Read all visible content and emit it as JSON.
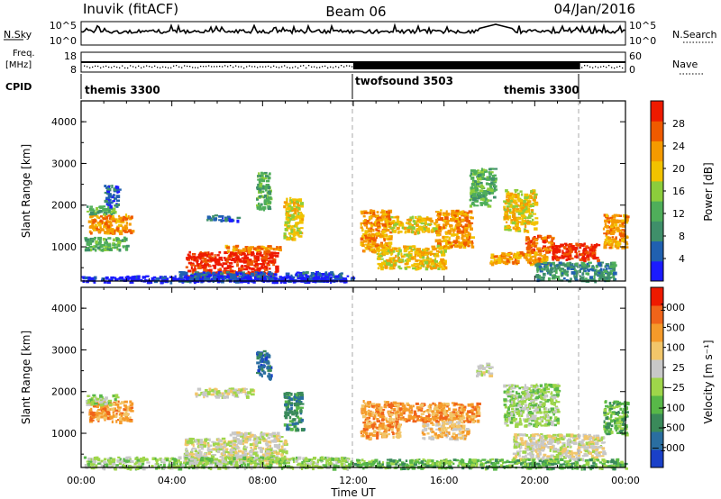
{
  "header": {
    "station": "Inuvik (fitACF)",
    "beam": "Beam 06",
    "date": "04/Jan/2016"
  },
  "top_panels": {
    "nsky_label": "N.Sky",
    "nsky_ticks": [
      "10^5",
      "10^0"
    ],
    "nsearch_label": "N.Search",
    "nsearch_ticks": [
      "10^5",
      "10^0"
    ],
    "freq_label_line1": "Freq.",
    "freq_label_line2": "[MHz]",
    "freq_ticks": [
      "18",
      "8"
    ],
    "nave_label": "Nave",
    "nave_ticks": [
      "60",
      "0"
    ],
    "cpid_label": "CPID",
    "cpid_segments": [
      {
        "name": "themis 3300",
        "start_hour": 0,
        "end_hour": 12
      },
      {
        "name": "twofsound 3503",
        "start_hour": 12,
        "end_hour": 22
      },
      {
        "name": "themis 3300",
        "start_hour": 22,
        "end_hour": 24
      }
    ]
  },
  "chart_data": [
    {
      "type": "heatmap",
      "name": "power",
      "ylabel": "Slant Range [km]",
      "xlim": [
        0,
        24
      ],
      "ylim": [
        180,
        4500
      ],
      "yticks": [
        "1000",
        "2000",
        "3000",
        "4000"
      ],
      "colorbar": {
        "label": "Power [dB]",
        "ticks": [
          "4",
          "8",
          "12",
          "16",
          "20",
          "24",
          "28"
        ],
        "colors": [
          "#1b1bff",
          "#2060b0",
          "#3f8f6a",
          "#4fae5a",
          "#8ccd3c",
          "#f2c200",
          "#f59a00",
          "#ef5a00",
          "#ee1a00"
        ]
      },
      "patches": [
        {
          "t0": 0.3,
          "t1": 2.2,
          "r0": 1350,
          "r1": 1800,
          "level": 6
        },
        {
          "t0": 0.2,
          "t1": 1.4,
          "r0": 1800,
          "r1": 2000,
          "level": 3
        },
        {
          "t0": 1.0,
          "t1": 1.6,
          "r0": 2000,
          "r1": 2500,
          "level": 1
        },
        {
          "t0": 0.1,
          "t1": 2.0,
          "r0": 950,
          "r1": 1250,
          "level": 3
        },
        {
          "t0": 4.6,
          "t1": 8.6,
          "r0": 300,
          "r1": 900,
          "level": 8
        },
        {
          "t0": 6.3,
          "t1": 8.8,
          "r0": 900,
          "r1": 1050,
          "level": 6
        },
        {
          "t0": 4.2,
          "t1": 11.5,
          "r0": 200,
          "r1": 420,
          "level": 1
        },
        {
          "t0": 5.5,
          "t1": 7.0,
          "r0": 1650,
          "r1": 1780,
          "level": 1
        },
        {
          "t0": 7.7,
          "t1": 8.3,
          "r0": 1900,
          "r1": 2800,
          "level": 3
        },
        {
          "t0": 8.9,
          "t1": 9.7,
          "r0": 1200,
          "r1": 2200,
          "level": 5
        },
        {
          "t0": 12.3,
          "t1": 13.6,
          "r0": 900,
          "r1": 1900,
          "level": 6
        },
        {
          "t0": 13.6,
          "t1": 15.6,
          "r0": 1350,
          "r1": 1750,
          "level": 5
        },
        {
          "t0": 15.6,
          "t1": 17.2,
          "r0": 1000,
          "r1": 1900,
          "level": 6
        },
        {
          "t0": 13.0,
          "t1": 16.0,
          "r0": 500,
          "r1": 1050,
          "level": 5
        },
        {
          "t0": 17.1,
          "t1": 18.2,
          "r0": 2000,
          "r1": 2900,
          "level": 3
        },
        {
          "t0": 18.6,
          "t1": 20.0,
          "r0": 1400,
          "r1": 2400,
          "level": 5
        },
        {
          "t0": 19.5,
          "t1": 20.8,
          "r0": 900,
          "r1": 1300,
          "level": 7
        },
        {
          "t0": 20.7,
          "t1": 22.8,
          "r0": 700,
          "r1": 1100,
          "level": 8
        },
        {
          "t0": 18.0,
          "t1": 20.5,
          "r0": 600,
          "r1": 900,
          "level": 6
        },
        {
          "t0": 23.0,
          "t1": 24.0,
          "r0": 1000,
          "r1": 1800,
          "level": 6
        },
        {
          "t0": 20.0,
          "t1": 23.5,
          "r0": 200,
          "r1": 650,
          "level": 2
        },
        {
          "t0": 0.0,
          "t1": 12.0,
          "r0": 180,
          "r1": 320,
          "level": 0
        }
      ]
    },
    {
      "type": "heatmap",
      "name": "velocity",
      "ylabel": "Slant Range [km]",
      "xlabel": "Time UT",
      "xlim": [
        0,
        24
      ],
      "ylim": [
        180,
        4500
      ],
      "yticks": [
        "1000",
        "2000",
        "3000",
        "4000"
      ],
      "xticks": [
        "00:00",
        "04:00",
        "08:00",
        "12:00",
        "16:00",
        "20:00",
        "00:00"
      ],
      "colorbar": {
        "label": "Velocity [m s⁻¹]",
        "ticks": [
          "1000",
          "500",
          "100",
          "25",
          "−25",
          "−100",
          "−500",
          "−1000"
        ],
        "colors": [
          "#1a40c8",
          "#2a6ea0",
          "#3a8a5a",
          "#58b848",
          "#9fd64a",
          "#c8c8c8",
          "#f2c66a",
          "#f59a2a",
          "#f0641a",
          "#ee1a00"
        ]
      },
      "patches": [
        {
          "t0": 0.3,
          "t1": 2.2,
          "r0": 1300,
          "r1": 1800,
          "level": 7
        },
        {
          "t0": 0.2,
          "t1": 1.5,
          "r0": 1700,
          "r1": 1950,
          "level": 4
        },
        {
          "t0": 4.5,
          "t1": 9.0,
          "r0": 300,
          "r1": 900,
          "level": 5
        },
        {
          "t0": 6.5,
          "t1": 8.8,
          "r0": 900,
          "r1": 1050,
          "level": 5
        },
        {
          "t0": 5.0,
          "t1": 7.5,
          "r0": 1900,
          "r1": 2100,
          "level": 5
        },
        {
          "t0": 7.7,
          "t1": 8.3,
          "r0": 2300,
          "r1": 3000,
          "level": 1
        },
        {
          "t0": 8.9,
          "t1": 9.7,
          "r0": 1100,
          "r1": 2000,
          "level": 2
        },
        {
          "t0": 12.3,
          "t1": 14.0,
          "r0": 900,
          "r1": 1800,
          "level": 7
        },
        {
          "t0": 14.0,
          "t1": 17.5,
          "r0": 1300,
          "r1": 1750,
          "level": 7
        },
        {
          "t0": 15.0,
          "t1": 17.0,
          "r0": 900,
          "r1": 1300,
          "level": 6
        },
        {
          "t0": 17.4,
          "t1": 18.0,
          "r0": 2400,
          "r1": 2700,
          "level": 5
        },
        {
          "t0": 18.6,
          "t1": 21.0,
          "r0": 1200,
          "r1": 2200,
          "level": 4
        },
        {
          "t0": 19.0,
          "t1": 23.0,
          "r0": 400,
          "r1": 1000,
          "level": 5
        },
        {
          "t0": 23.0,
          "t1": 24.0,
          "r0": 1000,
          "r1": 1800,
          "level": 3
        },
        {
          "t0": 0.0,
          "t1": 12.0,
          "r0": 180,
          "r1": 450,
          "level": 4
        },
        {
          "t0": 12.0,
          "t1": 24.0,
          "r0": 180,
          "r1": 400,
          "level": 3
        }
      ]
    }
  ]
}
